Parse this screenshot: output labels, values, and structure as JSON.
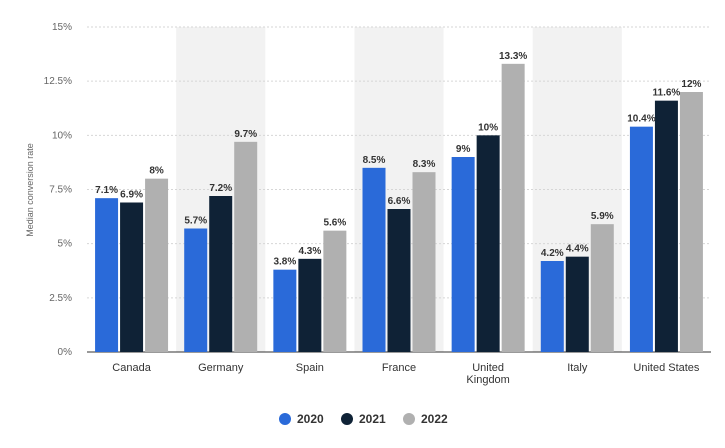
{
  "chart_data": {
    "type": "bar",
    "title": "",
    "xlabel": "",
    "ylabel": "Median conversion rate",
    "categories": [
      "Canada",
      "Germany",
      "Spain",
      "France",
      "United Kingdom",
      "Italy",
      "United States"
    ],
    "category_lines": [
      [
        "Canada"
      ],
      [
        "Germany"
      ],
      [
        "Spain"
      ],
      [
        "France"
      ],
      [
        "United",
        "Kingdom"
      ],
      [
        "Italy"
      ],
      [
        "United States"
      ]
    ],
    "series": [
      {
        "name": "2020",
        "values": [
          7.1,
          5.7,
          3.8,
          8.5,
          9,
          4.2,
          10.4
        ],
        "labels": [
          "7.1%",
          "5.7%",
          "3.8%",
          "8.5%",
          "9%",
          "4.2%",
          "10.4%"
        ],
        "color": "#2a6ad9"
      },
      {
        "name": "2021",
        "values": [
          6.9,
          7.2,
          4.3,
          6.6,
          10,
          4.4,
          11.6
        ],
        "labels": [
          "6.9%",
          "7.2%",
          "4.3%",
          "6.6%",
          "10%",
          "4.4%",
          "11.6%"
        ],
        "color": "#0f2236"
      },
      {
        "name": "2022",
        "values": [
          8,
          9.7,
          5.6,
          8.3,
          13.3,
          5.9,
          12
        ],
        "labels": [
          "8%",
          "9.7%",
          "5.6%",
          "8.3%",
          "13.3%",
          "5.9%",
          "12%"
        ],
        "color": "#b0b0b0"
      }
    ],
    "yticks": [
      0,
      2.5,
      5,
      7.5,
      10,
      12.5,
      15
    ],
    "ytick_labels": [
      "0%",
      "2.5%",
      "5%",
      "7.5%",
      "10%",
      "12.5%",
      "15%"
    ],
    "ylim": [
      0,
      15
    ],
    "grid": true,
    "legend_position": "bottom-center",
    "alternating_band_color": "#f2f2f2"
  }
}
